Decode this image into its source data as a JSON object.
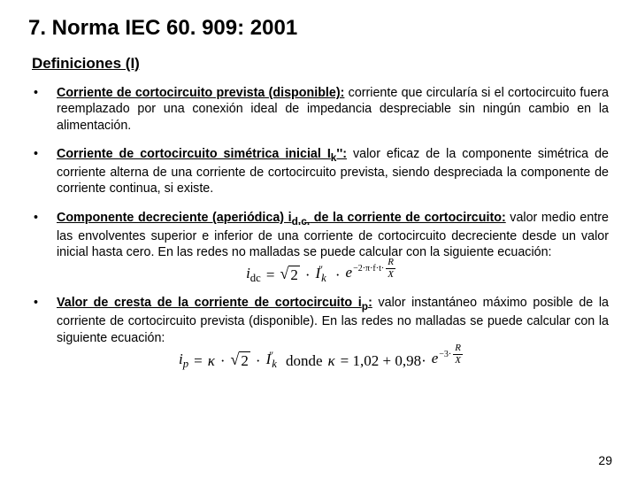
{
  "title": "7. Norma IEC 60. 909: 2001",
  "subtitle": "Definiciones (I)",
  "bullets": [
    {
      "term": "Corriente de cortocircuito prevista (disponible):",
      "text": " corriente que circularía si el cortocircuito fuera reemplazado por una conexión ideal de impedancia despreciable sin ningún cambio en la alimentación."
    },
    {
      "term_html": "Corriente de cortocircuito simétrica inicial I<sub>k</sub>'':",
      "text": " valor eficaz de la componente simétrica de corriente alterna de una corriente de cortocircuito prevista, siendo despreciada la componente de corriente continua, si existe."
    },
    {
      "term_html": "Componente decreciente (aperiódica) i<sub>d.c.</sub> de la corriente de cortocircuito:",
      "text": " valor medio entre las envolventes superior e inferior de una corriente de cortocircuito decreciente desde un valor inicial hasta cero. En las redes no malladas se puede calcular con la siguiente ecuación:"
    },
    {
      "term_html": "Valor de cresta de la corriente de cortocircuito i<sub>p</sub>:",
      "text": " valor instantáneo máximo posible de la corriente de cortocircuito prevista (disponible). En las redes no malladas se puede calcular con la siguiente ecuación:"
    }
  ],
  "formula1": {
    "lhs": "i",
    "lhs_sub": "dc",
    "eq": "=",
    "sqrt_arg": "2",
    "dot": "·",
    "I": "I",
    "k_sub": "k",
    "e_base": "e",
    "exp_prefix": "−2·π·f·t·",
    "frac_num": "R",
    "frac_den": "X"
  },
  "formula2": {
    "lhs": "i",
    "lhs_sub": "p",
    "eq": "=",
    "kappa": "κ",
    "dot": "·",
    "sqrt_arg": "2",
    "I": "I",
    "k_sub": "k",
    "donde": " donde ",
    "kappa2": "κ",
    "eq2": "= 1,02 + 0,98·",
    "e_base": "e",
    "exp_prefix": "−3·",
    "frac_num": "R",
    "frac_den": "X"
  },
  "page_number": "29"
}
